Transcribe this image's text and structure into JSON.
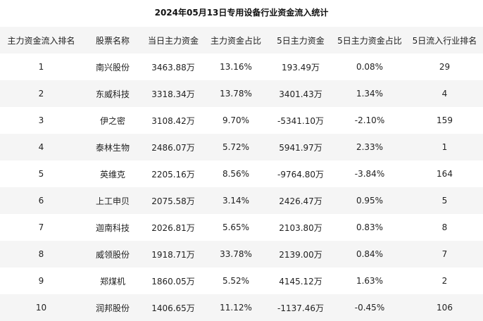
{
  "title": "2024年05月13日专用设备行业资金流入统计",
  "columns": [
    "主力资金流入排名",
    "股票名称",
    "当日主力资金",
    "主力资金占比",
    "5日主力资金",
    "5日主力资金占比",
    "5日流入行业排名"
  ],
  "rows": [
    [
      "1",
      "南兴股份",
      "3463.88万",
      "13.16%",
      "193.49万",
      "0.08%",
      "29"
    ],
    [
      "2",
      "东威科技",
      "3318.34万",
      "13.78%",
      "3401.43万",
      "1.34%",
      "4"
    ],
    [
      "3",
      "伊之密",
      "3108.42万",
      "9.70%",
      "-5341.10万",
      "-2.10%",
      "159"
    ],
    [
      "4",
      "泰林生物",
      "2486.07万",
      "5.72%",
      "5941.97万",
      "2.33%",
      "1"
    ],
    [
      "5",
      "英维克",
      "2205.16万",
      "8.56%",
      "-9764.80万",
      "-3.84%",
      "164"
    ],
    [
      "6",
      "上工申贝",
      "2075.58万",
      "3.14%",
      "2426.47万",
      "0.95%",
      "5"
    ],
    [
      "7",
      "迦南科技",
      "2026.81万",
      "5.65%",
      "2103.80万",
      "0.83%",
      "8"
    ],
    [
      "8",
      "威领股份",
      "1918.71万",
      "33.78%",
      "2139.00万",
      "0.84%",
      "7"
    ],
    [
      "9",
      "郑煤机",
      "1860.05万",
      "5.52%",
      "4145.12万",
      "1.63%",
      "2"
    ],
    [
      "10",
      "润邦股份",
      "1406.65万",
      "11.12%",
      "-1137.46万",
      "-0.45%",
      "106"
    ]
  ]
}
